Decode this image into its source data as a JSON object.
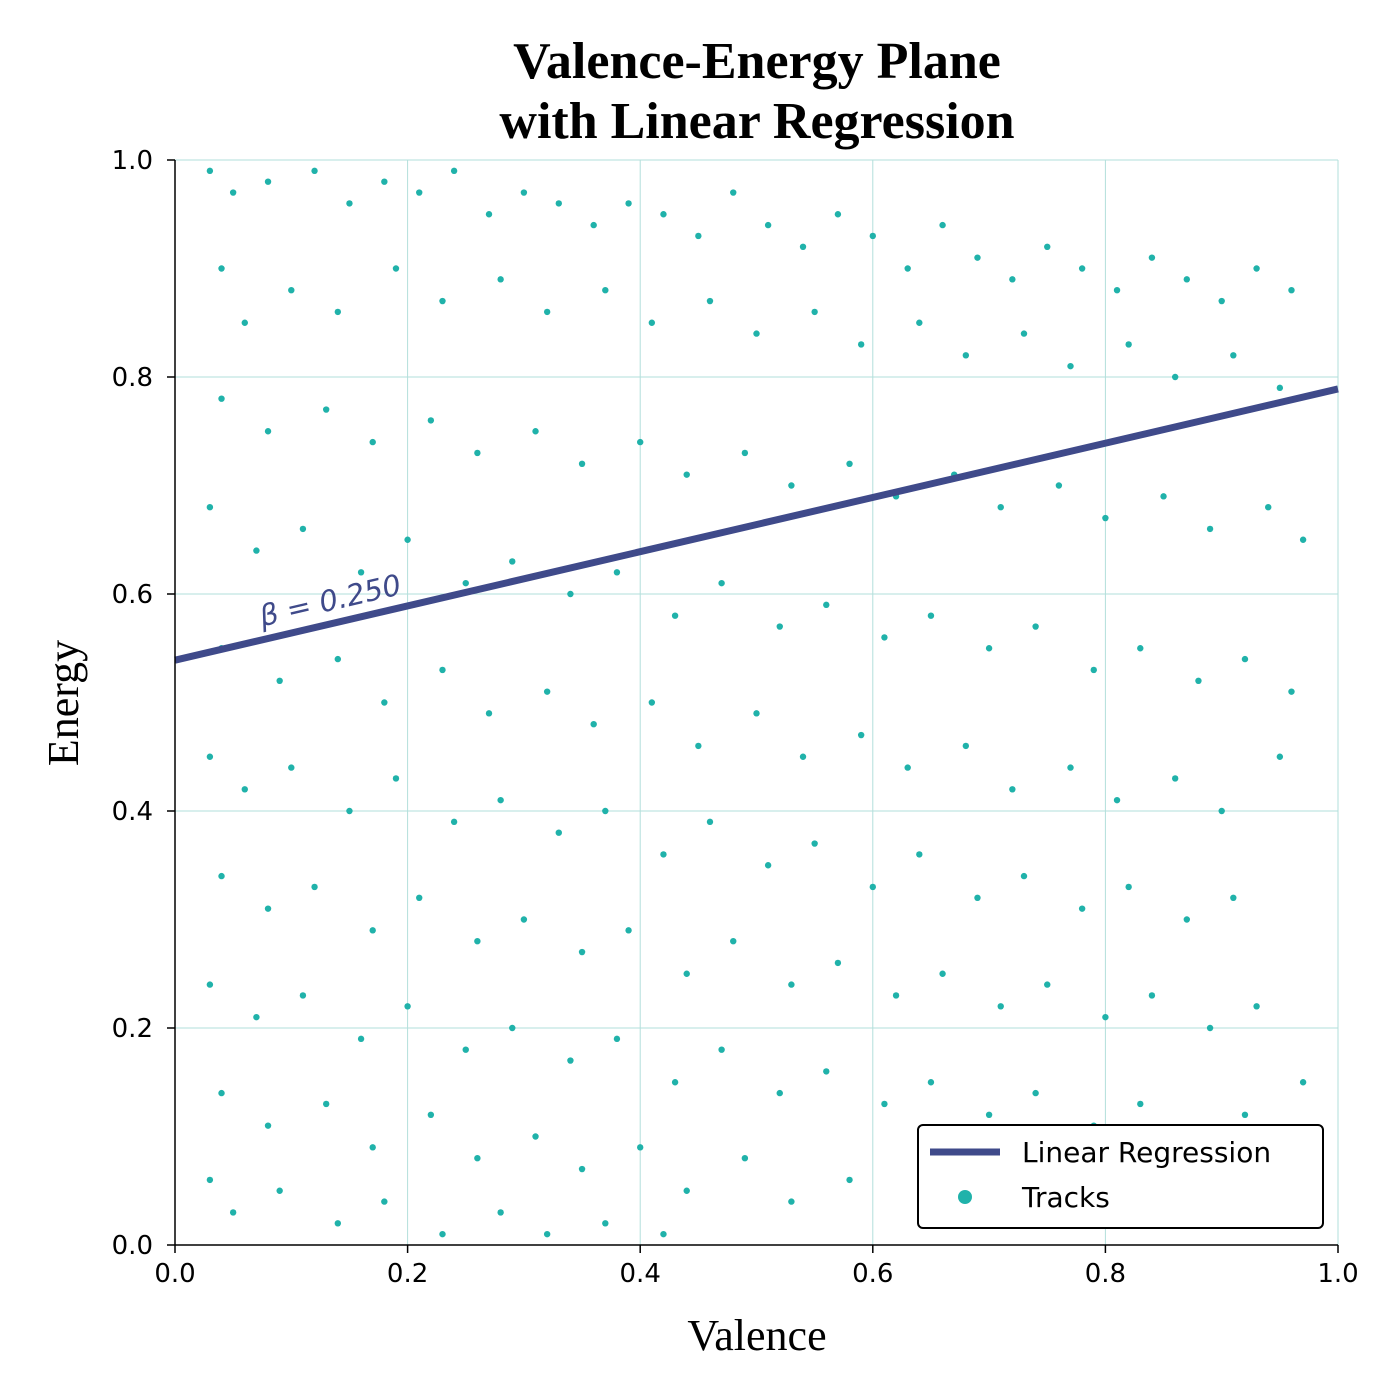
{
  "chart_data": {
    "type": "scatter",
    "title": "Valence-Energy Plane\nwith Linear Regression",
    "title_lines": [
      "Valence-Energy Plane",
      "with Linear Regression"
    ],
    "xlabel": "Valence",
    "ylabel": "Energy",
    "xlim": [
      0.0,
      1.0
    ],
    "ylim": [
      0.0,
      1.0
    ],
    "xticks": [
      "0.0",
      "0.2",
      "0.4",
      "0.6",
      "0.8",
      "1.0"
    ],
    "yticks": [
      "0.0",
      "0.2",
      "0.4",
      "0.6",
      "0.8",
      "1.0"
    ],
    "grid": true,
    "legend_position": "bottom-right",
    "series": [
      {
        "name": "Tracks",
        "kind": "scatter",
        "color": "#20b2aa",
        "points": [
          [
            0.03,
            0.99
          ],
          [
            0.05,
            0.97
          ],
          [
            0.08,
            0.98
          ],
          [
            0.12,
            0.99
          ],
          [
            0.15,
            0.96
          ],
          [
            0.18,
            0.98
          ],
          [
            0.21,
            0.97
          ],
          [
            0.24,
            0.99
          ],
          [
            0.27,
            0.95
          ],
          [
            0.3,
            0.97
          ],
          [
            0.33,
            0.96
          ],
          [
            0.36,
            0.94
          ],
          [
            0.39,
            0.96
          ],
          [
            0.42,
            0.95
          ],
          [
            0.45,
            0.93
          ],
          [
            0.48,
            0.97
          ],
          [
            0.51,
            0.94
          ],
          [
            0.54,
            0.92
          ],
          [
            0.57,
            0.95
          ],
          [
            0.6,
            0.93
          ],
          [
            0.63,
            0.9
          ],
          [
            0.66,
            0.94
          ],
          [
            0.69,
            0.91
          ],
          [
            0.72,
            0.89
          ],
          [
            0.75,
            0.92
          ],
          [
            0.78,
            0.9
          ],
          [
            0.81,
            0.88
          ],
          [
            0.84,
            0.91
          ],
          [
            0.87,
            0.89
          ],
          [
            0.9,
            0.87
          ],
          [
            0.93,
            0.9
          ],
          [
            0.96,
            0.88
          ],
          [
            0.04,
            0.9
          ],
          [
            0.06,
            0.85
          ],
          [
            0.1,
            0.88
          ],
          [
            0.14,
            0.86
          ],
          [
            0.19,
            0.9
          ],
          [
            0.23,
            0.87
          ],
          [
            0.28,
            0.89
          ],
          [
            0.32,
            0.86
          ],
          [
            0.37,
            0.88
          ],
          [
            0.41,
            0.85
          ],
          [
            0.46,
            0.87
          ],
          [
            0.5,
            0.84
          ],
          [
            0.55,
            0.86
          ],
          [
            0.59,
            0.83
          ],
          [
            0.64,
            0.85
          ],
          [
            0.68,
            0.82
          ],
          [
            0.73,
            0.84
          ],
          [
            0.77,
            0.81
          ],
          [
            0.82,
            0.83
          ],
          [
            0.86,
            0.8
          ],
          [
            0.91,
            0.82
          ],
          [
            0.95,
            0.79
          ],
          [
            0.04,
            0.78
          ],
          [
            0.08,
            0.75
          ],
          [
            0.13,
            0.77
          ],
          [
            0.17,
            0.74
          ],
          [
            0.22,
            0.76
          ],
          [
            0.26,
            0.73
          ],
          [
            0.31,
            0.75
          ],
          [
            0.35,
            0.72
          ],
          [
            0.4,
            0.74
          ],
          [
            0.44,
            0.71
          ],
          [
            0.49,
            0.73
          ],
          [
            0.53,
            0.7
          ],
          [
            0.58,
            0.72
          ],
          [
            0.62,
            0.69
          ],
          [
            0.67,
            0.71
          ],
          [
            0.71,
            0.68
          ],
          [
            0.76,
            0.7
          ],
          [
            0.8,
            0.67
          ],
          [
            0.85,
            0.69
          ],
          [
            0.89,
            0.66
          ],
          [
            0.94,
            0.68
          ],
          [
            0.97,
            0.65
          ],
          [
            0.03,
            0.68
          ],
          [
            0.07,
            0.64
          ],
          [
            0.11,
            0.66
          ],
          [
            0.16,
            0.62
          ],
          [
            0.2,
            0.65
          ],
          [
            0.25,
            0.61
          ],
          [
            0.29,
            0.63
          ],
          [
            0.34,
            0.6
          ],
          [
            0.38,
            0.62
          ],
          [
            0.43,
            0.58
          ],
          [
            0.47,
            0.61
          ],
          [
            0.52,
            0.57
          ],
          [
            0.56,
            0.59
          ],
          [
            0.61,
            0.56
          ],
          [
            0.65,
            0.58
          ],
          [
            0.7,
            0.55
          ],
          [
            0.74,
            0.57
          ],
          [
            0.79,
            0.53
          ],
          [
            0.83,
            0.55
          ],
          [
            0.88,
            0.52
          ],
          [
            0.92,
            0.54
          ],
          [
            0.96,
            0.51
          ],
          [
            0.04,
            0.55
          ],
          [
            0.09,
            0.52
          ],
          [
            0.14,
            0.54
          ],
          [
            0.18,
            0.5
          ],
          [
            0.23,
            0.53
          ],
          [
            0.27,
            0.49
          ],
          [
            0.32,
            0.51
          ],
          [
            0.36,
            0.48
          ],
          [
            0.41,
            0.5
          ],
          [
            0.45,
            0.46
          ],
          [
            0.5,
            0.49
          ],
          [
            0.54,
            0.45
          ],
          [
            0.59,
            0.47
          ],
          [
            0.63,
            0.44
          ],
          [
            0.68,
            0.46
          ],
          [
            0.72,
            0.42
          ],
          [
            0.77,
            0.44
          ],
          [
            0.81,
            0.41
          ],
          [
            0.86,
            0.43
          ],
          [
            0.9,
            0.4
          ],
          [
            0.95,
            0.45
          ],
          [
            0.03,
            0.45
          ],
          [
            0.06,
            0.42
          ],
          [
            0.1,
            0.44
          ],
          [
            0.15,
            0.4
          ],
          [
            0.19,
            0.43
          ],
          [
            0.24,
            0.39
          ],
          [
            0.28,
            0.41
          ],
          [
            0.33,
            0.38
          ],
          [
            0.37,
            0.4
          ],
          [
            0.42,
            0.36
          ],
          [
            0.46,
            0.39
          ],
          [
            0.51,
            0.35
          ],
          [
            0.55,
            0.37
          ],
          [
            0.6,
            0.33
          ],
          [
            0.64,
            0.36
          ],
          [
            0.69,
            0.32
          ],
          [
            0.73,
            0.34
          ],
          [
            0.78,
            0.31
          ],
          [
            0.82,
            0.33
          ],
          [
            0.87,
            0.3
          ],
          [
            0.91,
            0.32
          ],
          [
            0.04,
            0.34
          ],
          [
            0.08,
            0.31
          ],
          [
            0.12,
            0.33
          ],
          [
            0.17,
            0.29
          ],
          [
            0.21,
            0.32
          ],
          [
            0.26,
            0.28
          ],
          [
            0.3,
            0.3
          ],
          [
            0.35,
            0.27
          ],
          [
            0.39,
            0.29
          ],
          [
            0.44,
            0.25
          ],
          [
            0.48,
            0.28
          ],
          [
            0.53,
            0.24
          ],
          [
            0.57,
            0.26
          ],
          [
            0.62,
            0.23
          ],
          [
            0.66,
            0.25
          ],
          [
            0.71,
            0.22
          ],
          [
            0.75,
            0.24
          ],
          [
            0.8,
            0.21
          ],
          [
            0.84,
            0.23
          ],
          [
            0.89,
            0.2
          ],
          [
            0.93,
            0.22
          ],
          [
            0.03,
            0.24
          ],
          [
            0.07,
            0.21
          ],
          [
            0.11,
            0.23
          ],
          [
            0.16,
            0.19
          ],
          [
            0.2,
            0.22
          ],
          [
            0.25,
            0.18
          ],
          [
            0.29,
            0.2
          ],
          [
            0.34,
            0.17
          ],
          [
            0.38,
            0.19
          ],
          [
            0.43,
            0.15
          ],
          [
            0.47,
            0.18
          ],
          [
            0.52,
            0.14
          ],
          [
            0.56,
            0.16
          ],
          [
            0.61,
            0.13
          ],
          [
            0.65,
            0.15
          ],
          [
            0.7,
            0.12
          ],
          [
            0.74,
            0.14
          ],
          [
            0.79,
            0.11
          ],
          [
            0.83,
            0.13
          ],
          [
            0.88,
            0.1
          ],
          [
            0.92,
            0.12
          ],
          [
            0.97,
            0.15
          ],
          [
            0.04,
            0.14
          ],
          [
            0.08,
            0.11
          ],
          [
            0.13,
            0.13
          ],
          [
            0.17,
            0.09
          ],
          [
            0.22,
            0.12
          ],
          [
            0.26,
            0.08
          ],
          [
            0.31,
            0.1
          ],
          [
            0.35,
            0.07
          ],
          [
            0.4,
            0.09
          ],
          [
            0.44,
            0.05
          ],
          [
            0.49,
            0.08
          ],
          [
            0.53,
            0.04
          ],
          [
            0.58,
            0.06
          ],
          [
            0.67,
            0.05
          ],
          [
            0.03,
            0.06
          ],
          [
            0.05,
            0.03
          ],
          [
            0.09,
            0.05
          ],
          [
            0.14,
            0.02
          ],
          [
            0.18,
            0.04
          ],
          [
            0.23,
            0.01
          ],
          [
            0.28,
            0.03
          ],
          [
            0.32,
            0.01
          ],
          [
            0.37,
            0.02
          ],
          [
            0.42,
            0.01
          ]
        ]
      },
      {
        "name": "Linear Regression",
        "kind": "line",
        "color": "#3f4a8a",
        "x": [
          0.0,
          1.0
        ],
        "y": [
          0.539,
          0.789
        ]
      }
    ],
    "annotations": [
      {
        "text": "β = 0.250",
        "x": 0.075,
        "y": 0.57,
        "color": "#3f4a8a"
      }
    ],
    "colors": {
      "points": "#20b2aa",
      "line": "#3f4a8a",
      "grid": "#b2dfdb",
      "legend_border": "#000000"
    }
  }
}
